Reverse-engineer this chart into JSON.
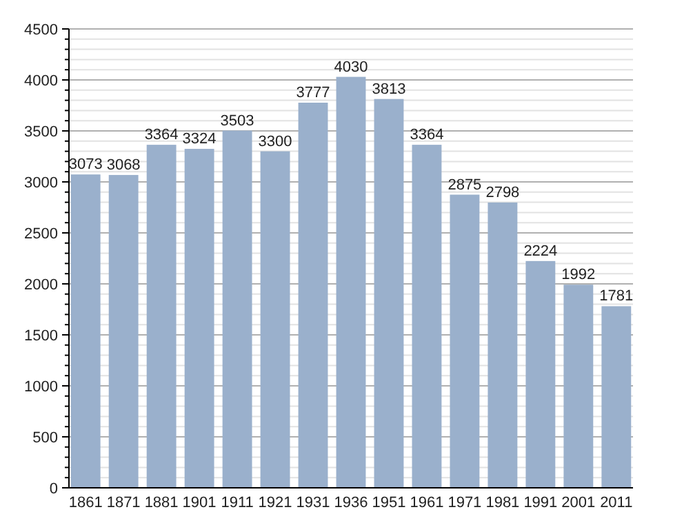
{
  "chart_data": {
    "type": "bar",
    "categories": [
      "1861",
      "1871",
      "1881",
      "1901",
      "1911",
      "1921",
      "1931",
      "1936",
      "1951",
      "1961",
      "1971",
      "1981",
      "1991",
      "2001",
      "2011"
    ],
    "values": [
      3073,
      3068,
      3364,
      3324,
      3503,
      3300,
      3777,
      4030,
      3813,
      3364,
      2875,
      2798,
      2224,
      1992,
      1781
    ],
    "color": "#9ab0cc",
    "data_labels": true,
    "grid": true,
    "ylim": [
      0,
      4500
    ],
    "yticks": [
      0,
      {
        "value": 100,
        "label": null
      },
      {
        "value": 200,
        "label": null
      },
      {
        "value": 300,
        "label": null
      },
      {
        "value": 400,
        "label": null
      },
      500,
      {
        "value": 600,
        "label": null
      },
      {
        "value": 700,
        "label": null
      },
      {
        "value": 800,
        "label": null
      },
      {
        "value": 900,
        "label": null
      },
      1000,
      {
        "value": 1100,
        "label": null
      },
      {
        "value": 1200,
        "label": null
      },
      {
        "value": 1300,
        "label": null
      },
      {
        "value": 1400,
        "label": null
      },
      1500,
      {
        "value": 1600,
        "label": null
      },
      {
        "value": 1700,
        "label": null
      },
      {
        "value": 1800,
        "label": null
      },
      {
        "value": 1900,
        "label": null
      },
      2000,
      {
        "value": 2100,
        "label": null
      },
      {
        "value": 2200,
        "label": null
      },
      {
        "value": 2300,
        "label": null
      },
      {
        "value": 2400,
        "label": null
      },
      2500,
      {
        "value": 2600,
        "label": null
      },
      {
        "value": 2700,
        "label": null
      },
      {
        "value": 2800,
        "label": null
      },
      {
        "value": 2900,
        "label": null
      },
      3000,
      {
        "value": 3100,
        "label": null
      },
      {
        "value": 3200,
        "label": null
      },
      {
        "value": 3300,
        "label": null
      },
      {
        "value": 3400,
        "label": null
      },
      3500,
      {
        "value": 3600,
        "label": null
      },
      {
        "value": 3700,
        "label": null
      },
      {
        "value": 3800,
        "label": null
      },
      {
        "value": 3900,
        "label": null
      },
      4000,
      {
        "value": 4100,
        "label": null
      },
      {
        "value": 4200,
        "label": null
      },
      {
        "value": 4300,
        "label": null
      },
      {
        "value": 4400,
        "label": null
      },
      4500
    ]
  }
}
